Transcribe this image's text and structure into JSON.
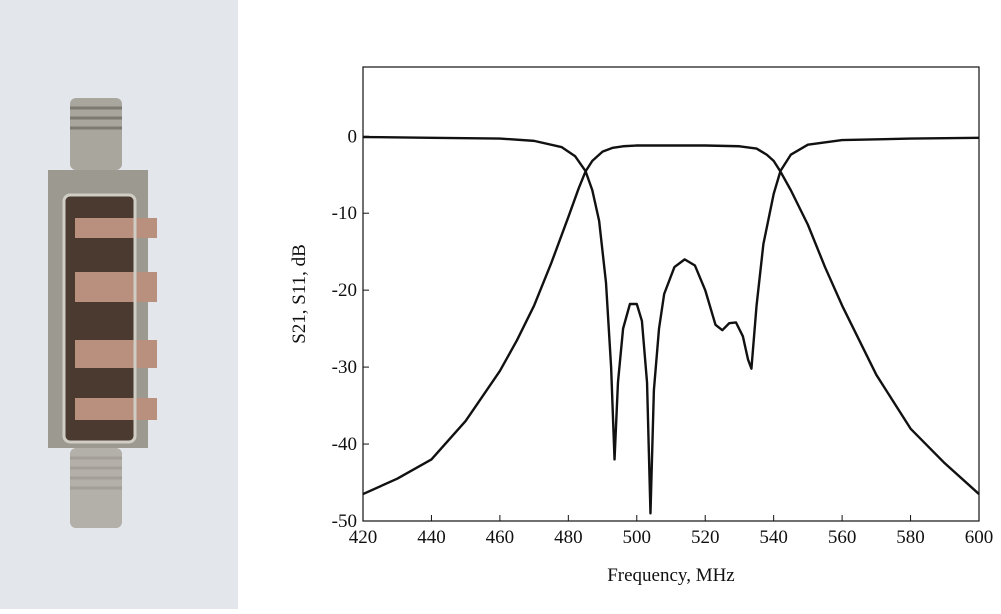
{
  "chart_data": {
    "type": "line",
    "x_label": "Frequency, MHz",
    "y_label": "S21, S11, dB",
    "xlim": [
      420,
      600
    ],
    "xticks": [
      420,
      440,
      460,
      480,
      500,
      520,
      540,
      560,
      580,
      600
    ],
    "ylim": [
      -50,
      9
    ],
    "yticks": [
      -50,
      -40,
      -30,
      -20,
      -10,
      0
    ],
    "series": [
      {
        "color": "#111111",
        "x": [
          420,
          430,
          440,
          450,
          460,
          465,
          470,
          475,
          480,
          483,
          485,
          487,
          490,
          493,
          496,
          500,
          510,
          520,
          530,
          535,
          538,
          540,
          542,
          545,
          550,
          555,
          560,
          570,
          580,
          590,
          600
        ],
        "values": [
          -46.5,
          -44.5,
          -42,
          -37,
          -30.5,
          -26.5,
          -22,
          -16.5,
          -10.5,
          -6.8,
          -4.6,
          -3.2,
          -2,
          -1.5,
          -1.3,
          -1.2,
          -1.2,
          -1.2,
          -1.3,
          -1.6,
          -2.4,
          -3.2,
          -4.6,
          -7,
          -11.5,
          -17,
          -22,
          -31,
          -38,
          -42.5,
          -46.5
        ]
      },
      {
        "color": "#111111",
        "x": [
          420,
          440,
          460,
          470,
          478,
          482,
          485,
          487,
          489,
          491,
          492.5,
          493.5,
          494.5,
          496,
          498,
          500,
          501.5,
          503,
          504,
          505,
          506.5,
          508,
          511,
          514,
          517,
          520,
          523,
          525,
          527,
          529,
          531,
          532.5,
          533.5,
          535,
          537,
          540,
          542,
          545,
          550,
          560,
          580,
          600
        ],
        "values": [
          -0.1,
          -0.2,
          -0.3,
          -0.6,
          -1.4,
          -2.6,
          -4.5,
          -7,
          -11,
          -19,
          -30,
          -42,
          -32,
          -25,
          -21.8,
          -21.8,
          -24,
          -32,
          -49,
          -33,
          -25,
          -20.5,
          -17,
          -16,
          -16.8,
          -20,
          -24.5,
          -25.2,
          -24.3,
          -24.2,
          -26,
          -29,
          -30.2,
          -22,
          -14,
          -7.5,
          -4.5,
          -2.4,
          -1.1,
          -0.5,
          -0.3,
          -0.2
        ]
      }
    ]
  }
}
